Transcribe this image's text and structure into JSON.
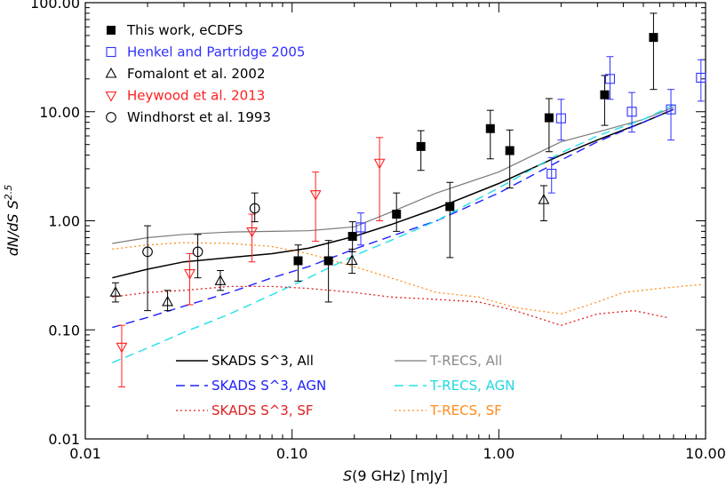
{
  "chart_data": {
    "type": "scatter",
    "xscale": "log",
    "yscale": "log",
    "xlabel": {
      "var": "S",
      "rest": "(9 GHz) [mJy]"
    },
    "ylabel": {
      "main": "dN/dS S",
      "exp": "2.5"
    },
    "xlim": [
      0.01,
      10
    ],
    "ylim": [
      0.01,
      100
    ],
    "xticks": [
      {
        "v": 0.01,
        "label": "0.01"
      },
      {
        "v": 0.1,
        "label": "0.10"
      },
      {
        "v": 1,
        "label": "1.00"
      },
      {
        "v": 10,
        "label": "10.00"
      }
    ],
    "yticks": [
      {
        "v": 0.01,
        "label": "0.01"
      },
      {
        "v": 0.1,
        "label": "0.10"
      },
      {
        "v": 1,
        "label": "1.00"
      },
      {
        "v": 10,
        "label": "10.00"
      },
      {
        "v": 100,
        "label": "100.00"
      }
    ],
    "point_series": [
      {
        "name": "This work, eCDFS",
        "color": "#000000",
        "marker": "filled-square",
        "points": [
          [
            0.107,
            0.43,
            0.28,
            0.6
          ],
          [
            0.15,
            0.43,
            0.18,
            0.66
          ],
          [
            0.196,
            0.72,
            0.52,
            0.98
          ],
          [
            0.32,
            1.15,
            0.8,
            1.8
          ],
          [
            0.42,
            4.8,
            2.9,
            6.7
          ],
          [
            0.58,
            1.35,
            0.46,
            2.25
          ],
          [
            0.91,
            7.0,
            3.7,
            10.3
          ],
          [
            1.13,
            4.4,
            2.0,
            6.8
          ],
          [
            1.75,
            8.8,
            4.3,
            13.2
          ],
          [
            3.25,
            14.3,
            7.5,
            21.5
          ],
          [
            5.6,
            48.0,
            16.0,
            80.0
          ]
        ]
      },
      {
        "name": "Henkel and Partridge 2005",
        "color": "#3030ff",
        "marker": "open-square",
        "points": [
          [
            0.215,
            0.87,
            0.6,
            1.18
          ],
          [
            1.8,
            2.7,
            1.8,
            3.8
          ],
          [
            2.0,
            8.7,
            5.5,
            13.0
          ],
          [
            3.45,
            20.0,
            13.0,
            32.0
          ],
          [
            4.4,
            10.0,
            6.5,
            15.0
          ],
          [
            6.8,
            10.5,
            5.5,
            16.0
          ],
          [
            9.5,
            20.5,
            12.5,
            30.0
          ]
        ]
      },
      {
        "name": "Fomalont et al. 2002",
        "color": "#000000",
        "marker": "open-triangle-up",
        "points": [
          [
            0.014,
            0.22,
            0.18,
            0.27
          ],
          [
            0.025,
            0.18,
            0.15,
            0.23
          ],
          [
            0.045,
            0.28,
            0.23,
            0.35
          ],
          [
            0.195,
            0.43,
            0.33,
            0.55
          ],
          [
            1.65,
            1.55,
            1.0,
            2.1
          ]
        ]
      },
      {
        "name": "Heywood et al. 2013",
        "color": "#ff2020",
        "marker": "open-triangle-down",
        "points": [
          [
            0.015,
            0.07,
            0.03,
            0.11
          ],
          [
            0.032,
            0.33,
            0.17,
            0.5
          ],
          [
            0.064,
            0.8,
            0.42,
            1.15
          ],
          [
            0.13,
            1.75,
            0.65,
            2.8
          ],
          [
            0.265,
            3.4,
            1.0,
            5.8
          ]
        ]
      },
      {
        "name": "Windhorst et al. 1993",
        "color": "#000000",
        "marker": "open-circle",
        "points": [
          [
            0.02,
            0.52,
            0.15,
            0.9
          ],
          [
            0.035,
            0.52,
            0.3,
            0.75
          ],
          [
            0.066,
            1.3,
            0.98,
            1.8
          ]
        ]
      }
    ],
    "line_series": [
      {
        "name": "SKADS S^3, All",
        "color": "#000000",
        "dash": "",
        "width": 1.5,
        "x": [
          0.0135,
          0.02,
          0.03,
          0.05,
          0.08,
          0.12,
          0.2,
          0.3,
          0.5,
          1,
          2,
          3,
          5,
          7
        ],
        "y": [
          0.3,
          0.36,
          0.42,
          0.46,
          0.5,
          0.56,
          0.72,
          0.92,
          1.3,
          2.2,
          4.0,
          5.5,
          8.0,
          10.5
        ]
      },
      {
        "name": "T-RECS, All",
        "color": "#7a7a7a",
        "dash": "",
        "width": 1.2,
        "x": [
          0.0135,
          0.02,
          0.03,
          0.05,
          0.08,
          0.12,
          0.2,
          0.3,
          0.5,
          1,
          2,
          3,
          5,
          7
        ],
        "y": [
          0.62,
          0.7,
          0.75,
          0.79,
          0.8,
          0.81,
          0.88,
          1.2,
          1.8,
          2.8,
          5.3,
          6.5,
          8.5,
          11.0
        ]
      },
      {
        "name": "SKADS S^3, AGN",
        "color": "#2020ff",
        "dash": "10,6",
        "width": 1.4,
        "x": [
          0.0135,
          0.02,
          0.03,
          0.05,
          0.08,
          0.12,
          0.2,
          0.3,
          0.5,
          1,
          2,
          3,
          5,
          7
        ],
        "y": [
          0.105,
          0.13,
          0.165,
          0.22,
          0.3,
          0.38,
          0.55,
          0.72,
          1.0,
          1.8,
          3.6,
          5.3,
          8.0,
          10.5
        ]
      },
      {
        "name": "T-RECS, AGN",
        "color": "#20e0e8",
        "dash": "10,6",
        "width": 1.4,
        "x": [
          0.0135,
          0.02,
          0.03,
          0.05,
          0.08,
          0.12,
          0.2,
          0.3,
          0.5,
          1,
          2,
          3,
          5,
          7
        ],
        "y": [
          0.05,
          0.068,
          0.095,
          0.14,
          0.21,
          0.3,
          0.48,
          0.66,
          1.0,
          2.0,
          4.2,
          6.0,
          8.5,
          11.5
        ]
      },
      {
        "name": "SKADS S^3, SF",
        "color": "#e02020",
        "dash": "2,3",
        "width": 1.3,
        "x": [
          0.0135,
          0.02,
          0.03,
          0.05,
          0.08,
          0.12,
          0.2,
          0.3,
          0.5,
          0.8,
          1.2,
          2.0,
          3.0,
          4.5,
          6.5
        ],
        "y": [
          0.2,
          0.22,
          0.23,
          0.25,
          0.25,
          0.24,
          0.22,
          0.2,
          0.19,
          0.18,
          0.15,
          0.11,
          0.14,
          0.15,
          0.13
        ]
      },
      {
        "name": "T-RECS, SF",
        "color": "#ff8c1a",
        "dash": "2,3",
        "width": 1.3,
        "x": [
          0.0135,
          0.02,
          0.03,
          0.05,
          0.08,
          0.12,
          0.2,
          0.3,
          0.5,
          0.8,
          1.2,
          2.0,
          3.0,
          4.0,
          6.0,
          9.5
        ],
        "y": [
          0.55,
          0.6,
          0.63,
          0.62,
          0.58,
          0.5,
          0.38,
          0.3,
          0.22,
          0.2,
          0.16,
          0.14,
          0.18,
          0.22,
          0.24,
          0.26
        ]
      }
    ],
    "legend_points": [
      "This work, eCDFS",
      "Henkel and Partridge 2005",
      "Fomalont et al. 2002",
      "Heywood et al. 2013",
      "Windhorst et al. 1993"
    ],
    "legend_lines": [
      {
        "name": "SKADS S^3, All",
        "label_color": "#000000"
      },
      {
        "name": "T-RECS, All",
        "label_color": "#8a8a8a"
      },
      {
        "name": "SKADS S^3, AGN",
        "label_color": "#2020ff"
      },
      {
        "name": "T-RECS, AGN",
        "label_color": "#20d8e0"
      },
      {
        "name": "SKADS S^3, SF",
        "label_color": "#e02020"
      },
      {
        "name": "T-RECS, SF",
        "label_color": "#ff8c1a"
      }
    ]
  }
}
